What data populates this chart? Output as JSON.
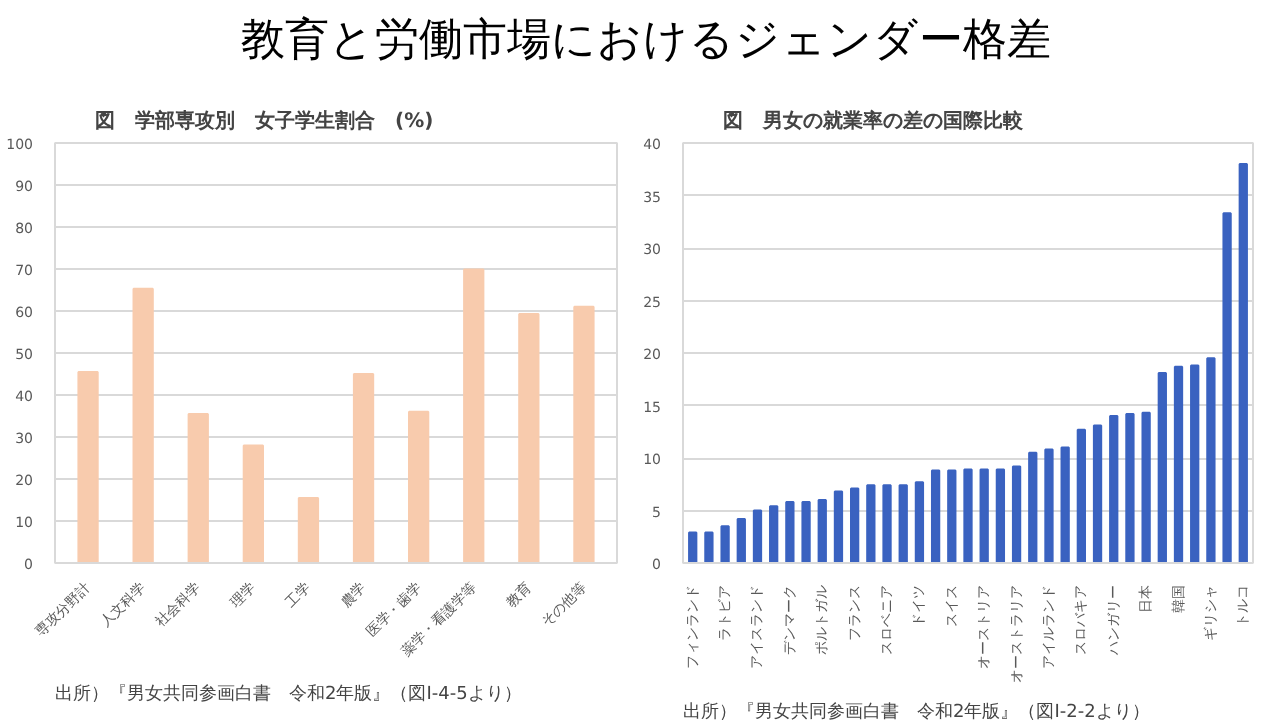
{
  "chart_data": [
    {
      "type": "bar",
      "title": "教育と労働市場におけるジェンダー格差",
      "subtitle": "図　学部専攻別　女子学生割合　(%)",
      "categories": [
        "専攻分野計",
        "人文科学",
        "社会科学",
        "理学",
        "工学",
        "農学",
        "医学・歯学",
        "薬学・看護学等",
        "教育",
        "その他等"
      ],
      "values": [
        45.5,
        65.3,
        35.5,
        28,
        15.5,
        45,
        36,
        69.9,
        59.3,
        61
      ],
      "color": "#f8cbad",
      "ylim": [
        0,
        100
      ],
      "yticks": [
        0,
        10,
        20,
        30,
        40,
        50,
        60,
        70,
        80,
        90,
        100
      ],
      "grid": "y",
      "annotations": [
        "出所）『男女共同参画白書　令和2年版』（図I-4-5より）"
      ]
    },
    {
      "type": "bar",
      "title": "図　男女の就業率の差の国際比較",
      "categories": [
        "フィンランド",
        null,
        "ラトビア",
        null,
        "アイスランド",
        null,
        "デンマーク",
        null,
        "ポルトガル",
        null,
        "フランス",
        null,
        "スロベニア",
        null,
        "ドイツ",
        null,
        "スイス",
        null,
        "オーストリア",
        null,
        "オーストラリア",
        null,
        "アイルランド",
        null,
        "スロバキア",
        null,
        "ハンガリー",
        null,
        "日本",
        null,
        "韓国",
        null,
        "ギリシャ",
        null,
        "トルコ"
      ],
      "values": [
        2.9,
        2.9,
        3.5,
        4.2,
        5.0,
        5.4,
        5.8,
        5.8,
        6.0,
        6.8,
        7.1,
        7.4,
        7.4,
        7.4,
        7.7,
        8.8,
        8.8,
        8.9,
        8.9,
        8.9,
        9.2,
        10.5,
        10.8,
        11.0,
        12.7,
        13.1,
        14.0,
        14.2,
        14.3,
        18.1,
        18.7,
        18.8,
        19.5,
        33.3,
        38.0
      ],
      "color": "#3a62c0",
      "ylim": [
        0,
        40
      ],
      "yticks": [
        0,
        5,
        10,
        15,
        20,
        25,
        30,
        35,
        40
      ],
      "grid": "y",
      "annotations": [
        "出所）『男女共同参画白書　令和2年版』（図I-2-2より）"
      ]
    }
  ]
}
